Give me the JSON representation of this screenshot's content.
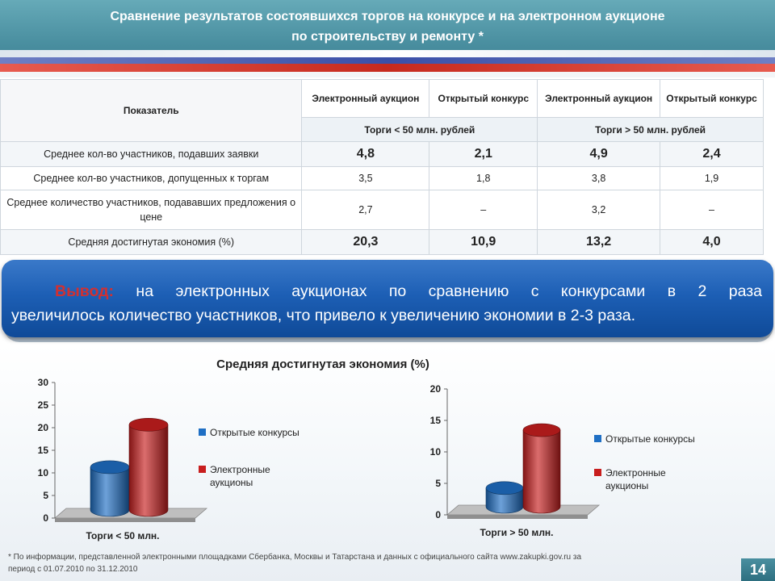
{
  "header": {
    "title_line1": "Сравнение результатов состоявшихся торгов на конкурсе и на электронном аукционе",
    "title_line2": "по строительству и ремонту *"
  },
  "table": {
    "indicator_header": "Показатель",
    "col_headers": [
      "Электронный аукцион",
      "Открытый конкурс",
      "Электронный аукцион",
      "Открытый конкурс"
    ],
    "group_headers": [
      "Торги < 50 млн. рублей",
      "Торги > 50 млн. рублей"
    ],
    "rows": [
      {
        "label": "Среднее кол-во участников, подавших заявки",
        "values": [
          "4,8",
          "2,1",
          "4,9",
          "2,4"
        ]
      },
      {
        "label": "Среднее кол-во участников,  допущенных к торгам",
        "values": [
          "3,5",
          "1,8",
          "3,8",
          "1,9"
        ]
      },
      {
        "label": "Среднее количество участников, подававших предложения о цене",
        "values": [
          "2,7",
          "–",
          "3,2",
          "–"
        ]
      },
      {
        "label": "Средняя достигнутая экономия (%)",
        "values": [
          "20,3",
          "10,9",
          "13,2",
          "4,0"
        ]
      }
    ]
  },
  "conclusion": {
    "label": "Вывод:",
    "text_line1": "на электронных аукционах по сравнению с конкурсами в 2 раза",
    "text_line2": "увеличилось количество участников, что привело к увеличению экономии в 2-3 раза."
  },
  "chart_title": "Средняя достигнутая экономия (%)",
  "colors": {
    "open_tender": "#1f6fc4",
    "electronic_auction": "#c81e1e"
  },
  "chart_data": [
    {
      "type": "bar",
      "categories": [
        "Торги < 50 млн."
      ],
      "series": [
        {
          "name": "Открытые конкурсы",
          "values": [
            10.9
          ]
        },
        {
          "name": "Электронные аукционы",
          "values": [
            20.3
          ]
        }
      ],
      "ylim": [
        0,
        30
      ],
      "yticks": [
        0,
        5,
        10,
        15,
        20,
        25,
        30
      ],
      "legend": "right",
      "style": "3d-cylinder"
    },
    {
      "type": "bar",
      "categories": [
        "Торги > 50 млн."
      ],
      "series": [
        {
          "name": "Открытые конкурсы",
          "values": [
            4.0
          ]
        },
        {
          "name": "Электронные аукционы",
          "values": [
            13.2
          ]
        }
      ],
      "ylim": [
        0,
        20
      ],
      "yticks": [
        0,
        5,
        10,
        15,
        20
      ],
      "legend": "right",
      "style": "3d-cylinder"
    }
  ],
  "footer": {
    "line1": "* По информации, представленной электронными площадками Сбербанка, Москвы и Татарстана и данных   с официального сайта www.zakupki.gov.ru  за",
    "line2": "период с 01.07.2010 по 31.12.2010"
  },
  "page_number": "14"
}
